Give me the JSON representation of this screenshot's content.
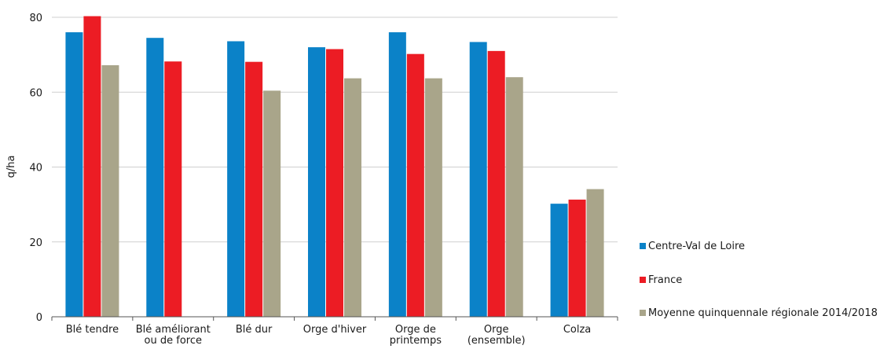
{
  "chart_data": {
    "type": "bar",
    "title": "",
    "xlabel": "",
    "ylabel": "q/ha",
    "ylim": [
      0,
      80
    ],
    "yticks": [
      "0",
      "20",
      "40",
      "60",
      "80"
    ],
    "grid": "horizontal",
    "legend_position": "right",
    "categories": [
      [
        "Blé tendre"
      ],
      [
        "Blé améliorant",
        "ou de force"
      ],
      [
        "Blé dur"
      ],
      [
        "Orge d'hiver"
      ],
      [
        "Orge de",
        "printemps"
      ],
      [
        "Orge",
        "(ensemble)"
      ],
      [
        "Colza"
      ]
    ],
    "series": [
      {
        "name": "Centre-Val de Loire",
        "color": "#0b82c8",
        "values": [
          76,
          74.5,
          73.6,
          72,
          76,
          73.4,
          30.2
        ]
      },
      {
        "name": "France",
        "color": "#ec1c24",
        "values": [
          80.3,
          68.2,
          68.1,
          71.5,
          70.2,
          71,
          31.3
        ]
      },
      {
        "name": "Moyenne quinquennale régionale 2014/2018",
        "color": "#a9a58a",
        "values": [
          67.2,
          null,
          60.4,
          63.7,
          63.7,
          64,
          34.1
        ]
      }
    ]
  }
}
